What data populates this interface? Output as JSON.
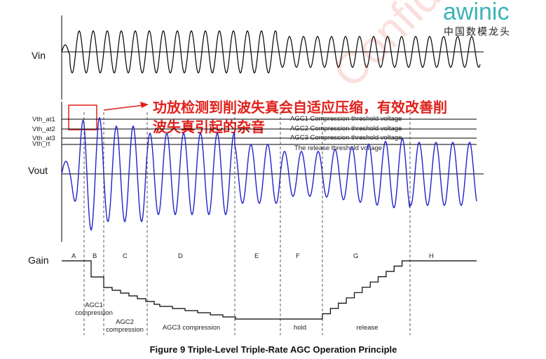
{
  "logo": {
    "brand": "awinic",
    "tagline": "中国数模龙头"
  },
  "signals": {
    "vin": "Vin",
    "vout": "Vout",
    "gain": "Gain"
  },
  "thresholds": [
    {
      "label": "Vth_at1",
      "description": "AGC1 Compression threshold voltage"
    },
    {
      "label": "Vth_at2",
      "description": "AGC2 Compression threshold voltage"
    },
    {
      "label": "Vth_at3",
      "description": "AGC3 Compression threshold voltage"
    },
    {
      "label": "Vth_rt",
      "description": "The release threshold voltage"
    }
  ],
  "annotation": [
    "功放检测到削波失真会自适应压缩，有效改善削",
    "波失真引起的杂音"
  ],
  "phases": [
    "A",
    "B",
    "C",
    "D",
    "E",
    "F",
    "G",
    "H"
  ],
  "stages": {
    "agc1": [
      "AGC1",
      "compression"
    ],
    "agc2": [
      "AGC2",
      "compression"
    ],
    "agc3": "AGC3 compression",
    "hold": "hold",
    "release": "release"
  },
  "watermark": "Confidential",
  "caption": "Figure 9    Triple-Level Triple-Rate AGC Operation Principle"
}
